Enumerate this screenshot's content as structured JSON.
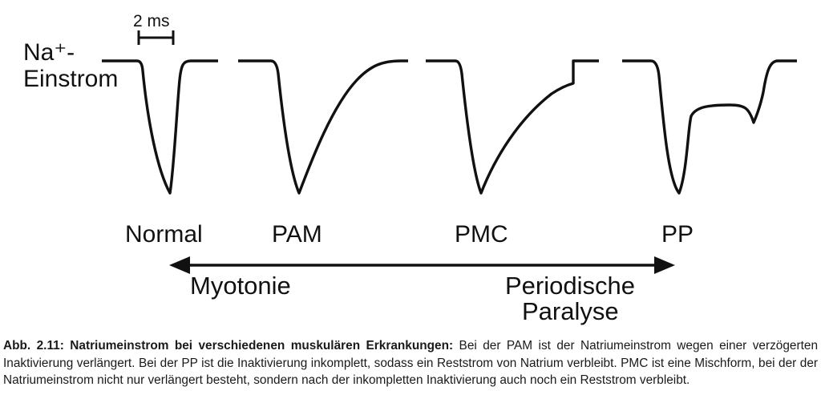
{
  "diagram": {
    "y_axis_label_line1": "Na⁺-",
    "y_axis_label_line2": "Einstrom",
    "scale_bar_label": "2 ms",
    "traces": [
      {
        "label": "Normal"
      },
      {
        "label": "PAM"
      },
      {
        "label": "PMC"
      },
      {
        "label": "PP"
      }
    ],
    "axis": {
      "left_label": "Myotonie",
      "right_label_line1": "Periodische",
      "right_label_line2": "Paralyse"
    }
  },
  "caption": {
    "title": "Abb. 2.11: Natriumeinstrom bei verschiedenen muskulären Erkrankungen:",
    "text": " Bei der PAM ist der Natriumeinstrom wegen einer verzögerten Inaktivierung verlängert. Bei der PP ist die Inaktivierung inkomplett, sodass ein Reststrom von Natrium verbleibt. PMC ist eine Mischform, bei der der Natriumeinstrom nicht nur verlängert besteht, sondern nach der inkompletten Inaktivierung auch noch ein Reststrom verbleibt."
  }
}
